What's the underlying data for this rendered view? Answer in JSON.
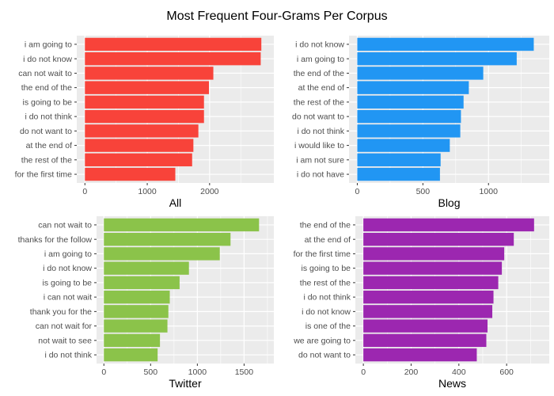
{
  "title": "Most Frequent Four-Grams Per Corpus",
  "chart_data": [
    {
      "type": "bar",
      "orientation": "horizontal",
      "xlabel": "All",
      "color": "#F8433A",
      "xlim": [
        0,
        2900
      ],
      "ticks": [
        0,
        1000,
        2000
      ],
      "tick_labels": [
        "0",
        "1000",
        "2000"
      ],
      "categories": [
        "i am going to",
        "i do not know",
        "can not wait to",
        "the end of the",
        "is going to be",
        "i do not think",
        "do not want to",
        "at the end of",
        "the rest of the",
        "for the first time"
      ],
      "values": [
        2830,
        2820,
        2060,
        1990,
        1910,
        1910,
        1820,
        1740,
        1720,
        1450
      ]
    },
    {
      "type": "bar",
      "orientation": "horizontal",
      "xlabel": "Blog",
      "color": "#2196F3",
      "xlim": [
        0,
        1400
      ],
      "ticks": [
        0,
        500,
        1000
      ],
      "tick_labels": [
        "0",
        "500",
        "1000"
      ],
      "categories": [
        "i do not know",
        "i am going to",
        "the end of the",
        "at the end of",
        "the rest of the",
        "do not want to",
        "i do not think",
        "i would like to",
        "i am not sure",
        "i do not have"
      ],
      "values": [
        1345,
        1215,
        960,
        850,
        810,
        790,
        785,
        705,
        635,
        630
      ]
    },
    {
      "type": "bar",
      "orientation": "horizontal",
      "xlabel": "Twitter",
      "color": "#8BC34A",
      "xlim": [
        0,
        1740
      ],
      "ticks": [
        0,
        500,
        1000,
        1500
      ],
      "tick_labels": [
        "0",
        "500",
        "1000",
        "1500"
      ],
      "categories": [
        "can not wait to",
        "thanks for the follow",
        "i am going to",
        "i do not know",
        "is going to be",
        "i can not wait",
        "thank you for the",
        "can not wait for",
        "not wait to see",
        "i do not think"
      ],
      "values": [
        1660,
        1355,
        1240,
        910,
        810,
        705,
        690,
        680,
        600,
        575
      ]
    },
    {
      "type": "bar",
      "orientation": "horizontal",
      "xlabel": "News",
      "color": "#9C27B0",
      "xlim": [
        0,
        745
      ],
      "ticks": [
        0,
        200,
        400,
        600
      ],
      "tick_labels": [
        "0",
        "200",
        "400",
        "600"
      ],
      "categories": [
        "the end of the",
        "at the end of",
        "for the first time",
        "is going to be",
        "the rest of the",
        "i do not think",
        "i do not know",
        "is one of the",
        "we are going to",
        "do not want to"
      ],
      "values": [
        715,
        630,
        590,
        580,
        565,
        545,
        540,
        520,
        515,
        475
      ]
    }
  ]
}
